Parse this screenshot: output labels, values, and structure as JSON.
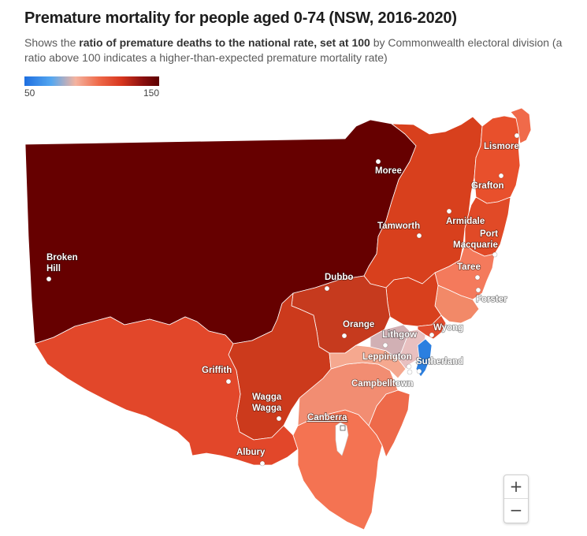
{
  "title": "Premature mortality for people aged 0-74 (NSW, 2016-2020)",
  "subtitle": {
    "part1": "Shows the ",
    "bold": "ratio of premature deaths to the national rate, set at 100",
    "part2": " by Commonwealth electoral division (a ratio above 100 indicates a higher-than-expected premature mortality rate)"
  },
  "legend": {
    "min": "50",
    "max": "150",
    "colors": [
      "#1e6fe0",
      "#55a7f0",
      "#f4b39f",
      "#ef6a4a",
      "#d7361e",
      "#8a0f0f",
      "#5c0000"
    ]
  },
  "towns": {
    "moree": "Moree",
    "lismore": "Lismore",
    "grafton": "Grafton",
    "tamworth": "Tamworth",
    "armidale": "Armidale",
    "port_macquarie_1": "Port",
    "port_macquarie_2": "Macquarie",
    "broken_hill_1": "Broken",
    "broken_hill_2": "Hill",
    "dubbo": "Dubbo",
    "taree": "Taree",
    "forster": "Forster",
    "orange": "Orange",
    "wyong": "Wyong",
    "lithgow": "Lithgow",
    "leppington": "Leppington",
    "sutherland": "Sutherland",
    "griffith": "Griffith",
    "campbelltown": "Campbelltown",
    "wagga_1": "Wagga",
    "wagga_2": "Wagga",
    "canberra": "Canberra",
    "albury": "Albury"
  },
  "zoom": {
    "in": "+",
    "out": "−"
  }
}
